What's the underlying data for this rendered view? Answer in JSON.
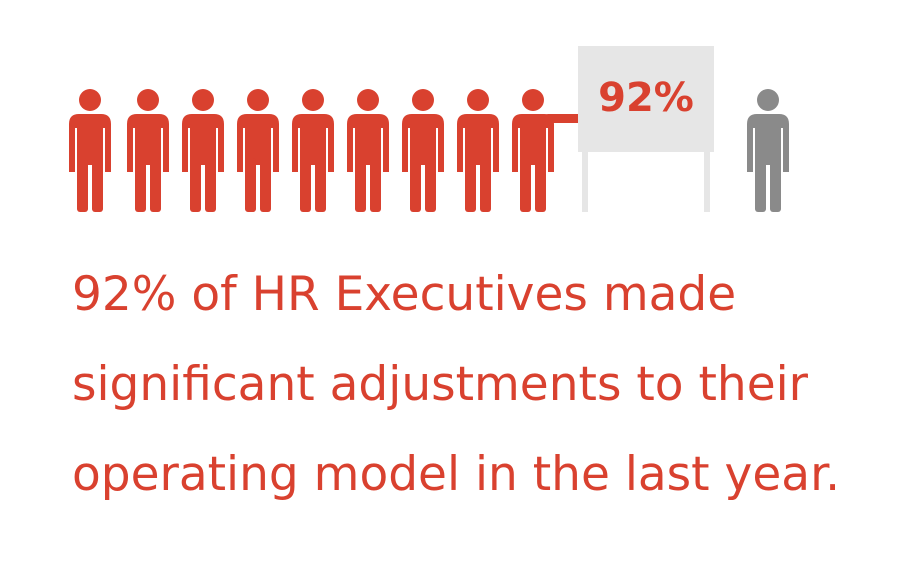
{
  "badge": {
    "label": "92%"
  },
  "caption": {
    "lines": [
      "92% of HR Executives made",
      "significant adjustments to their",
      "operating model in the last year."
    ]
  }
}
